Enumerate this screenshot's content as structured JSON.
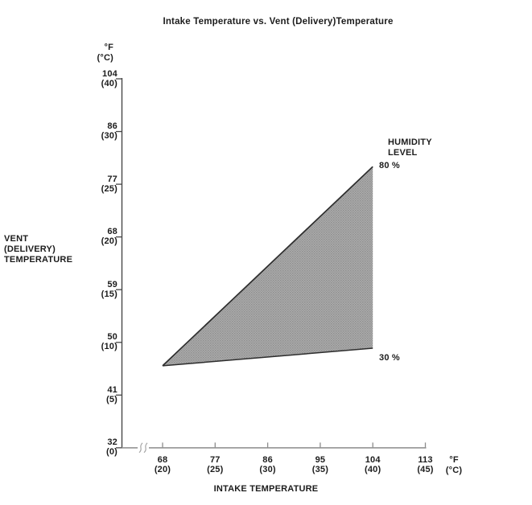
{
  "chart_data": {
    "type": "area",
    "title": "Intake Temperature vs. Vent (Delivery)Temperature",
    "xlabel": "INTAKE TEMPERATURE",
    "ylabel": "VENT (DELIVERY) TEMPERATURE",
    "ylabel_lines": [
      "VENT",
      "(DELIVERY)",
      "TEMPERATURE"
    ],
    "y_axis_unit_lines": [
      "°F",
      "(°C)"
    ],
    "x_axis_unit_lines": [
      "°F",
      "(°C)"
    ],
    "y_ticks": [
      {
        "f": "104",
        "c": "(40)"
      },
      {
        "f": "86",
        "c": "(30)"
      },
      {
        "f": "77",
        "c": "(25)"
      },
      {
        "f": "68",
        "c": "(20)"
      },
      {
        "f": "59",
        "c": "(15)"
      },
      {
        "f": "50",
        "c": "(10)"
      },
      {
        "f": "41",
        "c": "(5)"
      },
      {
        "f": "32",
        "c": "(0)"
      }
    ],
    "x_ticks": [
      {
        "f": "68",
        "c": "(20)"
      },
      {
        "f": "77",
        "c": "(25)"
      },
      {
        "f": "86",
        "c": "(30)"
      },
      {
        "f": "95",
        "c": "(35)"
      },
      {
        "f": "104",
        "c": "(40)"
      },
      {
        "f": "113",
        "c": "(45)"
      }
    ],
    "x_range_f": [
      68,
      113
    ],
    "y_range_f": [
      32,
      104
    ],
    "x_axis_break": true,
    "grid": false,
    "region": {
      "legend_lines": [
        "HUMIDITY",
        "LEVEL"
      ],
      "upper_label": "80 %",
      "lower_label": "30 %",
      "boundaries": [
        {
          "name": "80 % humidity line",
          "x_f": [
            68,
            104
          ],
          "y_f": [
            46,
            80
          ]
        },
        {
          "name": "30 % humidity line",
          "x_f": [
            68,
            104
          ],
          "y_f": [
            46,
            49
          ]
        }
      ],
      "fill_color": "#9f9f9f",
      "edge_color": "#2d2d2d"
    },
    "colors": {
      "text": "#1c1c1c",
      "y_axis": "#474747",
      "x_axis": "#9c9c9c",
      "background": "#ffffff"
    }
  }
}
